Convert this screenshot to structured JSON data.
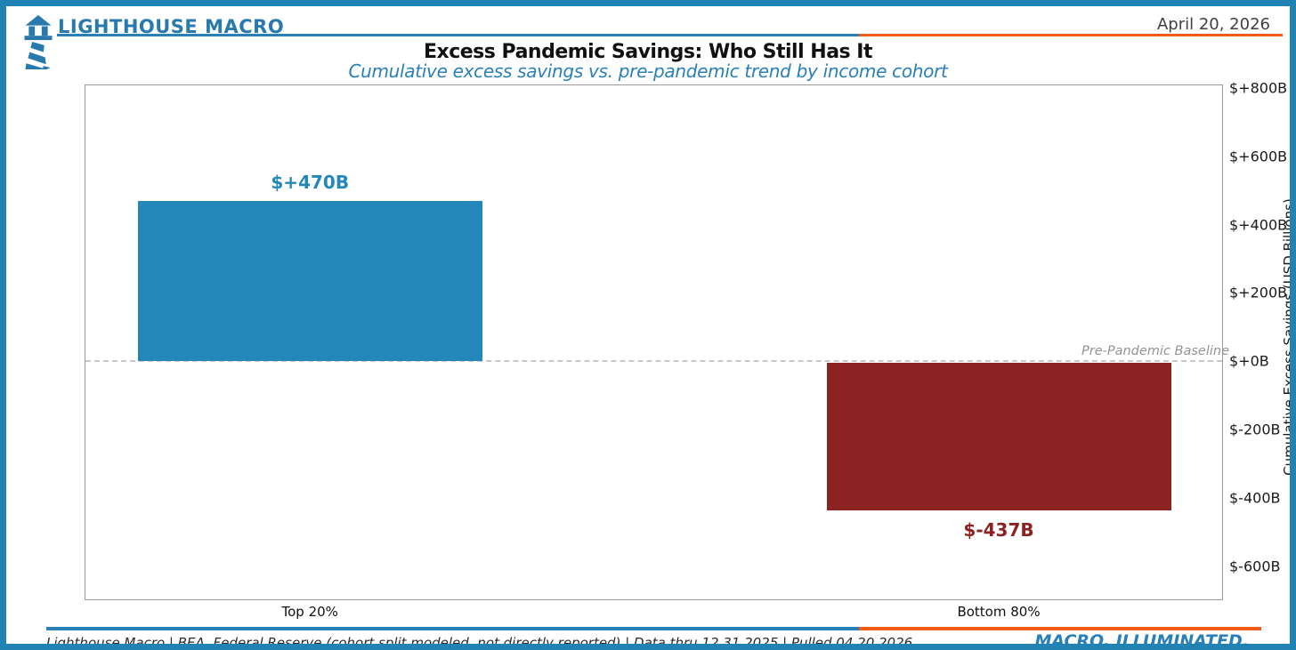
{
  "page": {
    "border_color": "#2182B4",
    "accent_blue": "#2980B9",
    "accent_orange": "#F25C1A",
    "brand_blue": "#2779AE"
  },
  "header": {
    "brand": "LIGHTHOUSE MACRO",
    "logo_icon": "lighthouse-icon",
    "date": "April 20, 2026"
  },
  "chart_data": {
    "type": "bar",
    "title": "Excess Pandemic Savings: Who Still Has It",
    "subtitle": "Cumulative excess savings vs. pre-pandemic trend by income cohort",
    "categories": [
      "Top 20%",
      "Bottom 80%"
    ],
    "values": [
      470,
      -437
    ],
    "bar_labels": [
      "$+470B",
      "$-437B"
    ],
    "bar_colors": [
      "#2487BA",
      "#8B2322"
    ],
    "ylabel": "Cumulative Excess Savings (USD Billions)",
    "ylim": [
      -700,
      810
    ],
    "yticks": [
      800,
      600,
      400,
      200,
      0,
      -200,
      -400,
      -600
    ],
    "ytick_labels": [
      "$+800B",
      "$+600B",
      "$+400B",
      "$+200B",
      "$+0B",
      "$-200B",
      "$-400B",
      "$-600B"
    ],
    "yaxis_side": "right",
    "baseline_value": 0,
    "baseline_annotation": "Pre-Pandemic Baseline",
    "grid": false,
    "legend": "none"
  },
  "footer": {
    "source_line": "Lighthouse Macro | BEA, Federal Reserve (cohort split modeled, not directly reported) | Data thru 12.31.2025 | Pulled 04.20.2026",
    "tagline": "MACRO, ILLUMINATED."
  }
}
